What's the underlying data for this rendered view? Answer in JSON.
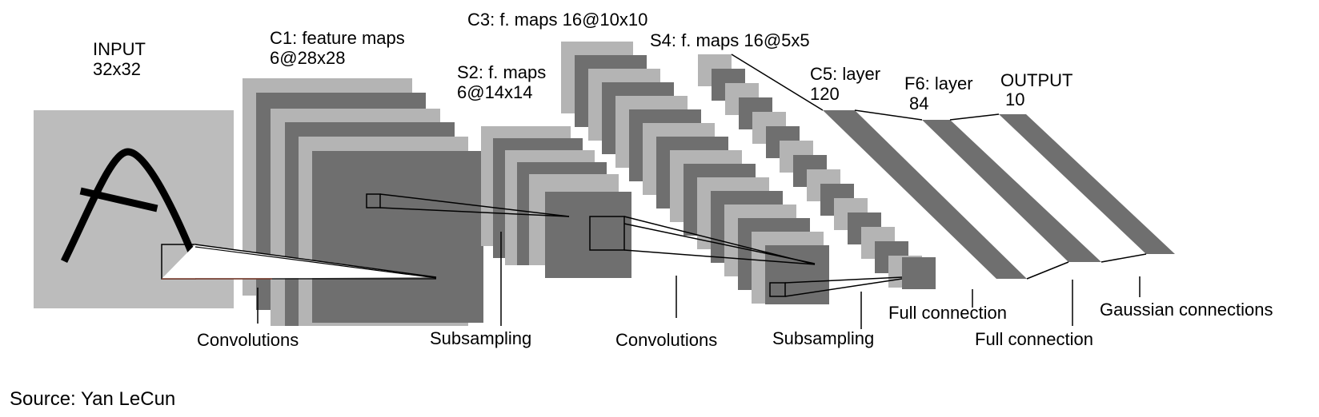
{
  "diagram": {
    "layer_labels": {
      "input": {
        "line1": "INPUT",
        "line2": "32x32"
      },
      "c1": {
        "line1": "C1: feature maps",
        "line2": "6@28x28"
      },
      "s2": {
        "line1": "S2: f. maps",
        "line2": "6@14x14"
      },
      "c3": {
        "line1": "C3: f. maps 16@10x10"
      },
      "s4": {
        "line1": "S4: f. maps 16@5x5"
      },
      "c5": {
        "line1": "C5: layer",
        "line2": "120"
      },
      "f6": {
        "line1": "F6: layer",
        "line2": "84"
      },
      "output": {
        "line1": "OUTPUT",
        "line2": "10"
      }
    },
    "operations": [
      "Convolutions",
      "Subsampling",
      "Convolutions",
      "Subsampling",
      "Full connection",
      "Full connection",
      "Gaussian connections"
    ],
    "source": "Source: Yan LeCun",
    "colors": {
      "light_map": "#b4b4b4",
      "dark_map": "#6f6f6f",
      "input_bg": "#bcbcbc",
      "stroke": "#000000"
    }
  }
}
